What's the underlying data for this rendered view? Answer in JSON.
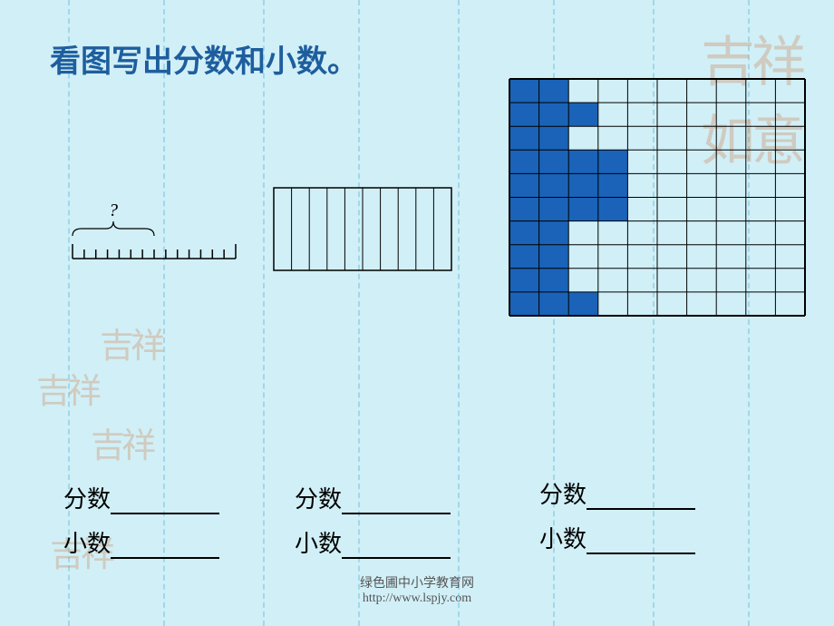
{
  "title": "看图写出分数和小数。",
  "dashed_guides": {
    "count": 8,
    "color": "#a0d8e8"
  },
  "ruler": {
    "total_ticks": 15,
    "brace_span_ticks": 7,
    "brace_label": "?",
    "stroke": "#000000"
  },
  "rect_strip": {
    "cols": 10,
    "stroke": "#000000",
    "fill": "none"
  },
  "grid": {
    "rows": 10,
    "cols": 10,
    "stroke": "#000000",
    "fill_color": "#1a63b8",
    "background": "none",
    "filled_cells": [
      [
        0,
        0
      ],
      [
        0,
        1
      ],
      [
        1,
        0
      ],
      [
        1,
        1
      ],
      [
        1,
        2
      ],
      [
        2,
        0
      ],
      [
        2,
        1
      ],
      [
        3,
        0
      ],
      [
        3,
        1
      ],
      [
        3,
        2
      ],
      [
        3,
        3
      ],
      [
        4,
        0
      ],
      [
        4,
        1
      ],
      [
        4,
        2
      ],
      [
        4,
        3
      ],
      [
        5,
        0
      ],
      [
        5,
        1
      ],
      [
        5,
        2
      ],
      [
        5,
        3
      ],
      [
        6,
        0
      ],
      [
        6,
        1
      ],
      [
        7,
        0
      ],
      [
        7,
        1
      ],
      [
        8,
        0
      ],
      [
        8,
        1
      ],
      [
        9,
        0
      ],
      [
        9,
        1
      ],
      [
        9,
        2
      ]
    ]
  },
  "labels": {
    "fraction": "分数",
    "decimal": "小数"
  },
  "footer": {
    "line1": "绿色圃中小学教育网",
    "line2": "http://www.lspjy.com"
  },
  "watermark_text": "吉祥",
  "colors": {
    "background": "#d1eff7",
    "title": "#1e5e9e",
    "text": "#000000"
  }
}
